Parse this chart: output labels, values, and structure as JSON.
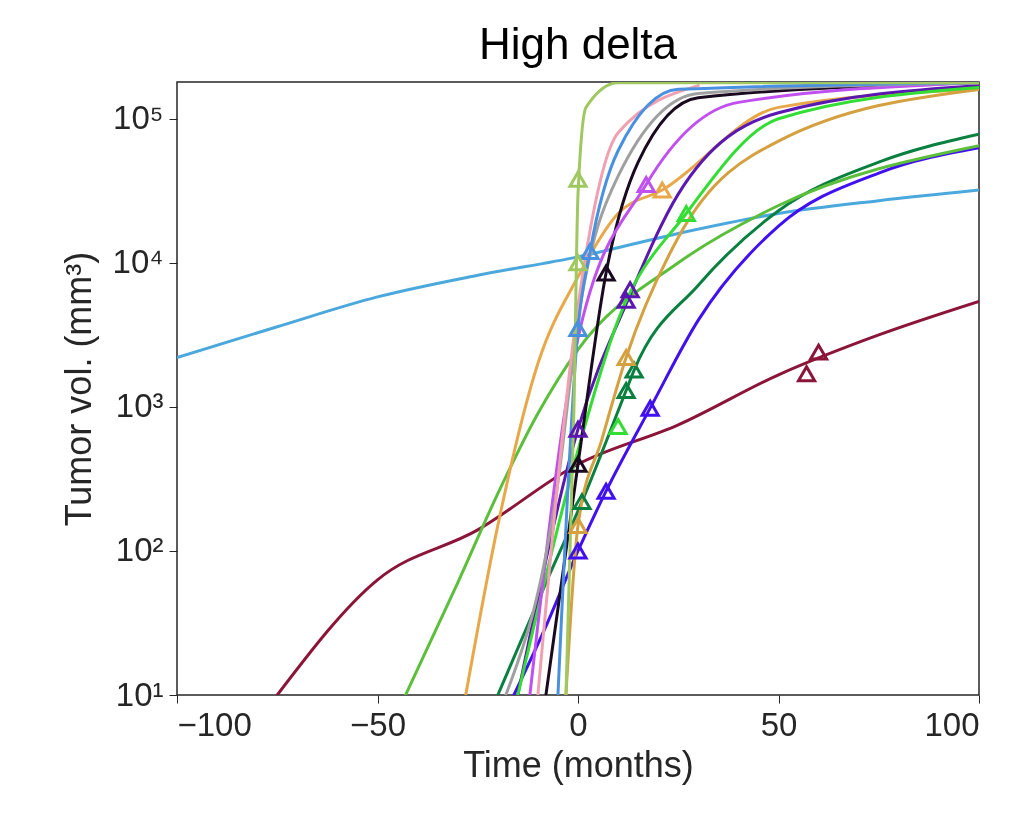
{
  "chart_data": {
    "type": "line",
    "title": "High delta",
    "xlabel": "Time (months)",
    "ylabel": "Tumor vol. (mm³)",
    "log": "y",
    "xlim": [
      -100,
      100
    ],
    "xticks": [
      -100,
      -50,
      0,
      50,
      100
    ],
    "ylim": [
      10,
      180000
    ],
    "yticks": [
      {
        "value": 10,
        "label": "10¹"
      },
      {
        "value": 100,
        "label": "10²"
      },
      {
        "value": 1000,
        "label": "10³"
      },
      {
        "value": 10000,
        "label": "10⁴"
      },
      {
        "value": 100000,
        "label": "10⁵"
      }
    ],
    "series": [
      {
        "color": "#4aa8dc",
        "x": [
          -100,
          -75,
          -50,
          -25,
          0,
          25,
          50,
          75,
          100
        ],
        "values": [
          2200,
          3600,
          5800,
          8200,
          11000,
          16000,
          22000,
          27000,
          32000
        ]
      },
      {
        "type": "line",
        "color": "#8b1538",
        "x": [
          -75,
          -50,
          -25,
          0,
          25,
          50,
          75,
          100
        ],
        "values": [
          10,
          63,
          140,
          400,
          750,
          1670,
          3160,
          5400
        ]
      },
      {
        "type": "line",
        "color": "#4010f0",
        "x": [
          -16,
          -8,
          0,
          7,
          18,
          30,
          50,
          75,
          100
        ],
        "values": [
          10,
          30,
          100,
          260,
          980,
          4000,
          18000,
          42000,
          63000
        ]
      },
      {
        "type": "line",
        "color": "#0a8040",
        "x": [
          -20,
          -8,
          1,
          12,
          14,
          30,
          50,
          75,
          100
        ],
        "values": [
          10,
          60,
          220,
          1300,
          1800,
          7000,
          23000,
          50000,
          78000
        ]
      },
      {
        "type": "line",
        "color": "#5cbf3c",
        "x": [
          -43,
          -30,
          -20,
          -10,
          0,
          25,
          50,
          100
        ],
        "values": [
          10,
          60,
          250,
          900,
          2500,
          10000,
          25000,
          65000
        ]
      },
      {
        "type": "line",
        "color": "#e8a84a",
        "x": [
          -28,
          -20,
          -10,
          0,
          10,
          21,
          50,
          100
        ],
        "values": [
          10,
          150,
          2000,
          8000,
          22000,
          32000,
          120000,
          160000
        ]
      },
      {
        "type": "line",
        "color": "#d4a040",
        "x": [
          -3,
          0,
          6,
          12,
          25,
          50,
          100
        ],
        "values": [
          10,
          150,
          600,
          2200,
          15000,
          70000,
          160000
        ]
      },
      {
        "type": "line",
        "color": "#5a18b0",
        "x": [
          -15,
          0,
          13,
          25,
          50,
          100
        ],
        "values": [
          10,
          700,
          6000,
          30000,
          110000,
          170000
        ]
      },
      {
        "type": "line",
        "color": "#33dd33",
        "x": [
          -15,
          0,
          10,
          27,
          50,
          100
        ],
        "values": [
          10,
          500,
          4000,
          22000,
          100000,
          165000
        ]
      },
      {
        "type": "line",
        "color": "#1a0a20",
        "x": [
          -8,
          0,
          7,
          15,
          30,
          100
        ],
        "values": [
          10,
          400,
          8500,
          50000,
          140000,
          178000
        ]
      },
      {
        "type": "line",
        "color": "#c050f0",
        "x": [
          -12,
          0,
          17,
          40,
          100
        ],
        "values": [
          10,
          3000,
          35000,
          130000,
          178000
        ]
      },
      {
        "type": "line",
        "color": "#a0a0a0",
        "x": [
          -18,
          -5,
          0,
          10,
          30,
          100
        ],
        "values": [
          10,
          300,
          4000,
          40000,
          150000,
          178000
        ]
      },
      {
        "type": "line",
        "color": "#f0a0b0",
        "x": [
          -10,
          0,
          10,
          30
        ],
        "values": [
          10,
          5000,
          80000,
          170000
        ]
      },
      {
        "type": "line",
        "color": "#4a90e0",
        "x": [
          -5,
          0,
          3,
          10,
          25,
          100
        ],
        "values": [
          10,
          3500,
          12000,
          60000,
          160000,
          178000
        ]
      },
      {
        "type": "line",
        "color": "#a0c860",
        "x": [
          -3,
          -1,
          0,
          2,
          10,
          100
        ],
        "values": [
          10,
          1000,
          30000,
          120000,
          178000,
          178000
        ]
      },
      {
        "type": "scatter",
        "marker": "triangle",
        "color": "#8b1538",
        "x": [
          57,
          60
        ],
        "values": [
          1700,
          2400
        ]
      },
      {
        "type": "scatter",
        "marker": "triangle",
        "color": "#4010f0",
        "x": [
          0,
          7,
          18
        ],
        "values": [
          100,
          260,
          980
        ]
      },
      {
        "type": "scatter",
        "marker": "triangle",
        "color": "#0a8040",
        "x": [
          1,
          12,
          14
        ],
        "values": [
          220,
          1300,
          1800
        ]
      },
      {
        "type": "scatter",
        "marker": "triangle",
        "color": "#e8a84a",
        "x": [
          21
        ],
        "values": [
          32000
        ]
      },
      {
        "type": "scatter",
        "marker": "triangle",
        "color": "#d4a040",
        "x": [
          0,
          12
        ],
        "values": [
          150,
          2200
        ]
      },
      {
        "type": "scatter",
        "marker": "triangle",
        "color": "#5a18b0",
        "x": [
          0,
          12,
          13
        ],
        "values": [
          700,
          5500,
          6500
        ]
      },
      {
        "type": "scatter",
        "marker": "triangle",
        "color": "#33dd33",
        "x": [
          10,
          27
        ],
        "values": [
          730,
          22000
        ]
      },
      {
        "type": "scatter",
        "marker": "triangle",
        "color": "#1a0a20",
        "x": [
          0,
          7
        ],
        "values": [
          400,
          8500
        ]
      },
      {
        "type": "scatter",
        "marker": "triangle",
        "color": "#c050f0",
        "x": [
          17
        ],
        "values": [
          35000
        ]
      },
      {
        "type": "scatter",
        "marker": "triangle",
        "color": "#4a90e0",
        "x": [
          0,
          3
        ],
        "values": [
          3500,
          12000
        ]
      },
      {
        "type": "scatter",
        "marker": "triangle",
        "color": "#a0c860",
        "x": [
          0,
          0
        ],
        "values": [
          10000,
          38000
        ]
      }
    ]
  }
}
